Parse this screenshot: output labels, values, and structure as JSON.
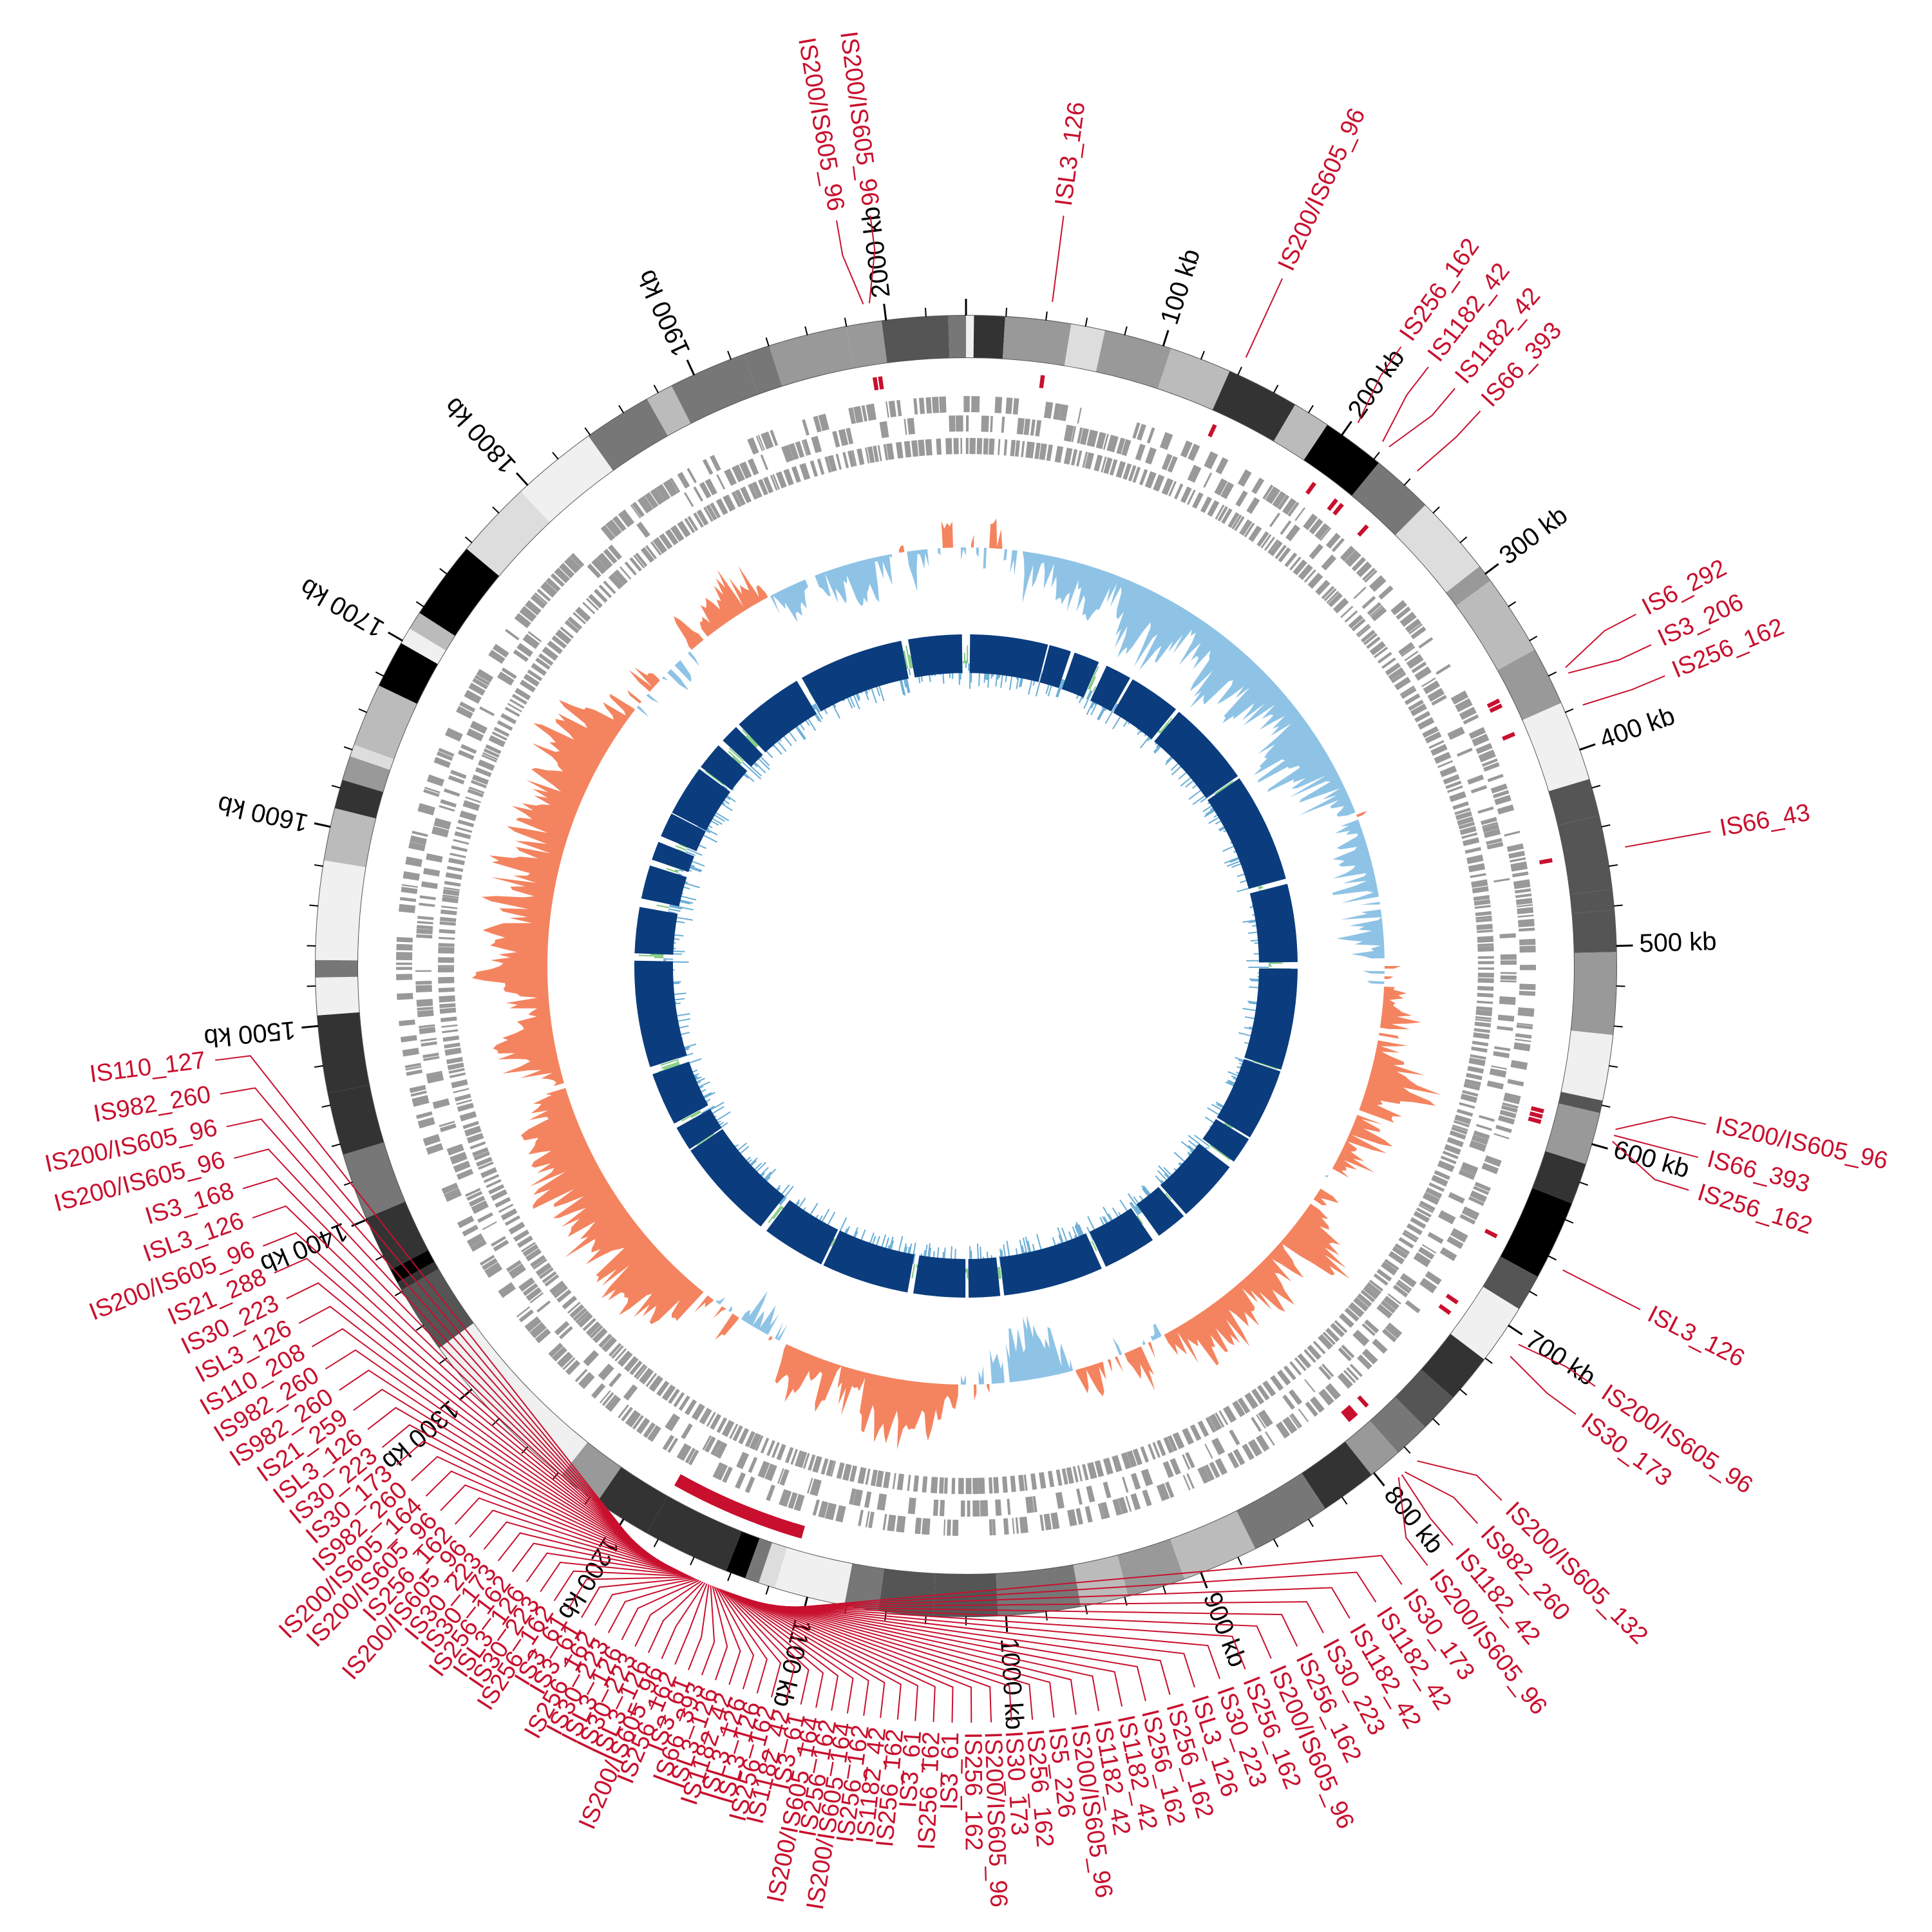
{
  "genome": {
    "length_kb": 2040,
    "ticks": [
      "100 kb",
      "200 kb",
      "300 kb",
      "400 kb",
      "500 kb",
      "600 kb",
      "700 kb",
      "800 kb",
      "900 kb",
      "1000 kb",
      "1100 kb",
      "1200 kb",
      "1300 kb",
      "1400 kb",
      "1500 kb",
      "1600 kb",
      "1700 kb",
      "1800 kb",
      "1900 kb",
      "2000 kb"
    ]
  },
  "colors": {
    "is_elements": "#c8102e",
    "gc_high": "#f4845f",
    "gc_low": "#8ec3e6",
    "skew_pos": "#7ec87e",
    "skew_neg": "#6baed6",
    "core_blocks": "#0b3d7e",
    "genes": "#999999"
  },
  "is_elements": [
    {
      "label": "IS200/IS605_96",
      "pos": 1990
    },
    {
      "label": "IS200/IS605_96",
      "pos": 1993
    },
    {
      "label": "ISL3_126",
      "pos": 42
    },
    {
      "label": "IS200/IS605_96",
      "pos": 140
    },
    {
      "label": "IS256_162",
      "pos": 203
    },
    {
      "label": "IS1182_42",
      "pos": 218
    },
    {
      "label": "IS1182_42",
      "pos": 222
    },
    {
      "label": "IS66_393",
      "pos": 240
    },
    {
      "label": "IS6_292",
      "pos": 360
    },
    {
      "label": "IS3_206",
      "pos": 363
    },
    {
      "label": "IS256_162",
      "pos": 380
    },
    {
      "label": "IS66_43",
      "pos": 452
    },
    {
      "label": "IS200/IS605_96",
      "pos": 590
    },
    {
      "label": "IS66_393",
      "pos": 593
    },
    {
      "label": "IS256_162",
      "pos": 596
    },
    {
      "label": "ISL3_126",
      "pos": 663
    },
    {
      "label": "IS200/IS605_96",
      "pos": 705
    },
    {
      "label": "IS30_173",
      "pos": 712
    },
    {
      "label": "IS200/IS605_132",
      "pos": 780
    },
    {
      "label": "IS982_260",
      "pos": 788
    },
    {
      "label": "IS1182_42",
      "pos": 790
    },
    {
      "label": "IS200/IS605_96",
      "pos": 792
    },
    {
      "label": "IS30_173",
      "pos": 1112
    },
    {
      "label": "IS1182_42",
      "pos": 1113
    },
    {
      "label": "IS1182_42",
      "pos": 1114
    },
    {
      "label": "IS30_223",
      "pos": 1115
    },
    {
      "label": "IS256_162",
      "pos": 1116
    },
    {
      "label": "IS200/IS605_96",
      "pos": 1117
    },
    {
      "label": "IS256_162",
      "pos": 1118
    },
    {
      "label": "IS30_223",
      "pos": 1119
    },
    {
      "label": "ISL3_126",
      "pos": 1120
    },
    {
      "label": "IS256_162",
      "pos": 1121
    },
    {
      "label": "IS256_162",
      "pos": 1122
    },
    {
      "label": "IS1182_42",
      "pos": 1123
    },
    {
      "label": "IS1182_42",
      "pos": 1124
    },
    {
      "label": "IS200/IS605_96",
      "pos": 1125
    },
    {
      "label": "IS5_226",
      "pos": 1126
    },
    {
      "label": "IS256_162",
      "pos": 1127
    },
    {
      "label": "IS30_173",
      "pos": 1128
    },
    {
      "label": "IS200/IS605_96",
      "pos": 1129
    },
    {
      "label": "IS256_162",
      "pos": 1130
    },
    {
      "label": "IS3_61",
      "pos": 1131
    },
    {
      "label": "IS256_162",
      "pos": 1132
    },
    {
      "label": "IS3_61",
      "pos": 1133
    },
    {
      "label": "IS256_162",
      "pos": 1134
    },
    {
      "label": "IS1182_42",
      "pos": 1135
    },
    {
      "label": "IS256_162",
      "pos": 1136
    },
    {
      "label": "IS200/IS605_164",
      "pos": 1137
    },
    {
      "label": "IS256_162",
      "pos": 1138
    },
    {
      "label": "IS200/IS605_164",
      "pos": 1139
    },
    {
      "label": "IS3_61",
      "pos": 1140
    },
    {
      "label": "IS1182_42",
      "pos": 1141
    },
    {
      "label": "IS256_162",
      "pos": 1142
    },
    {
      "label": "ISL3_126",
      "pos": 1143
    },
    {
      "label": "ISL3_126",
      "pos": 1144
    },
    {
      "label": "IS1182_42",
      "pos": 1145
    },
    {
      "label": "ISL3_126",
      "pos": 1146
    },
    {
      "label": "IS66_393",
      "pos": 1147
    },
    {
      "label": "IS3_61",
      "pos": 1148
    },
    {
      "label": "IS256_162",
      "pos": 1149
    },
    {
      "label": "IS200/IS605_96",
      "pos": 1150
    },
    {
      "label": "ISL3_126",
      "pos": 1151
    },
    {
      "label": "IS30_223",
      "pos": 1152
    },
    {
      "label": "ISL3_126",
      "pos": 1153
    },
    {
      "label": "IS30_223",
      "pos": 1154
    },
    {
      "label": "IS256_162",
      "pos": 1155
    },
    {
      "label": "IS3_61",
      "pos": 1156
    },
    {
      "label": "IS3_61",
      "pos": 1157
    },
    {
      "label": "IS256_162",
      "pos": 1158
    },
    {
      "label": "IS30_223",
      "pos": 1159
    },
    {
      "label": "ISL3_126",
      "pos": 1160
    },
    {
      "label": "IS256_162",
      "pos": 1161
    },
    {
      "label": "IS30_173",
      "pos": 1162
    },
    {
      "label": "IS30_223",
      "pos": 1163
    },
    {
      "label": "IS200/IS605_96",
      "pos": 1164
    },
    {
      "label": "IS256_162",
      "pos": 1165
    },
    {
      "label": "IS200/IS605_96",
      "pos": 1166
    },
    {
      "label": "IS200/IS605_164",
      "pos": 1167
    },
    {
      "label": "IS982_260",
      "pos": 1168
    },
    {
      "label": "IS30_173",
      "pos": 1169
    },
    {
      "label": "IS30_223",
      "pos": 1170
    },
    {
      "label": "ISL3_126",
      "pos": 1171
    },
    {
      "label": "IS21_259",
      "pos": 1172
    },
    {
      "label": "IS982_260",
      "pos": 1173
    },
    {
      "label": "IS982_260",
      "pos": 1174
    },
    {
      "label": "IS110_208",
      "pos": 1175
    },
    {
      "label": "ISL3_126",
      "pos": 1176
    },
    {
      "label": "IS30_223",
      "pos": 1177
    },
    {
      "label": "IS21_288",
      "pos": 1178
    },
    {
      "label": "IS200/IS605_96",
      "pos": 1179
    },
    {
      "label": "ISL3_126",
      "pos": 1180
    },
    {
      "label": "IS3_168",
      "pos": 1181
    },
    {
      "label": "IS200/IS605_96",
      "pos": 1182
    },
    {
      "label": "IS200/IS605_96",
      "pos": 1183
    },
    {
      "label": "IS982_260",
      "pos": 1184
    },
    {
      "label": "IS110_127",
      "pos": 1185
    }
  ]
}
